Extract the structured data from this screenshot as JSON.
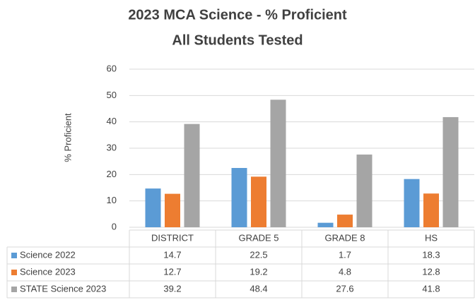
{
  "chart_data": {
    "type": "bar",
    "title": [
      "2023 MCA Science - % Proficient",
      "All Students Tested"
    ],
    "y_label": "% Proficient",
    "categories": [
      "DISTRICT",
      "GRADE 5",
      "GRADE 8",
      "HS"
    ],
    "series": [
      {
        "name": "Science 2022",
        "color": "#5b9bd5",
        "values": [
          14.7,
          22.5,
          1.7,
          18.3
        ]
      },
      {
        "name": "Science 2023",
        "color": "#ed7d31",
        "values": [
          12.7,
          19.2,
          4.8,
          12.8
        ]
      },
      {
        "name": "STATE Science 2023",
        "color": "#a5a5a5",
        "values": [
          39.2,
          48.4,
          27.6,
          41.8
        ]
      }
    ],
    "ylim": [
      0,
      60
    ],
    "yticks": [
      0,
      10,
      20,
      30,
      40,
      50,
      60
    ],
    "grid": true,
    "legend": "table"
  }
}
